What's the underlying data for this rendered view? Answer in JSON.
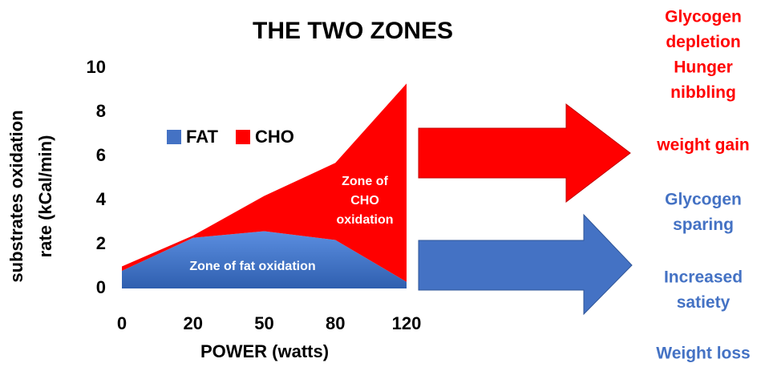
{
  "chart_data": {
    "type": "stacked_area",
    "title": "THE TWO ZONES",
    "y_label": [
      "substrates oxidation",
      "rate (kCal/min)"
    ],
    "x_label": "POWER (watts)",
    "categories": [
      "0",
      "20",
      "50",
      "80",
      "120"
    ],
    "series": [
      {
        "name": "FAT",
        "color": "#4472c4",
        "values": [
          0.8,
          2.3,
          2.6,
          2.2,
          0.3
        ]
      },
      {
        "name": "CHO",
        "color": "#ff0000",
        "values": [
          0.2,
          0.1,
          1.6,
          3.5,
          9.0
        ]
      }
    ],
    "ylim": [
      0,
      10
    ],
    "yticks": [
      0,
      2,
      4,
      6,
      8,
      10
    ],
    "annotations": [
      {
        "lines": [
          "Zone of fat oxidation"
        ]
      },
      {
        "lines": [
          "Zone of",
          "CHO",
          "oxidation"
        ]
      }
    ],
    "side_notes": [
      {
        "lines": [
          "Glycogen",
          "depletion",
          "Hunger",
          "nibbling"
        ],
        "color": "#ff0000"
      },
      {
        "lines": [
          "weight gain"
        ],
        "color": "#ff0000"
      },
      {
        "lines": [
          "Glycogen",
          "sparing"
        ],
        "color": "#4472c4"
      },
      {
        "lines": [
          "Increased",
          "satiety"
        ],
        "color": "#4472c4"
      },
      {
        "lines": [
          "Weight loss"
        ],
        "color": "#4472c4"
      }
    ]
  }
}
